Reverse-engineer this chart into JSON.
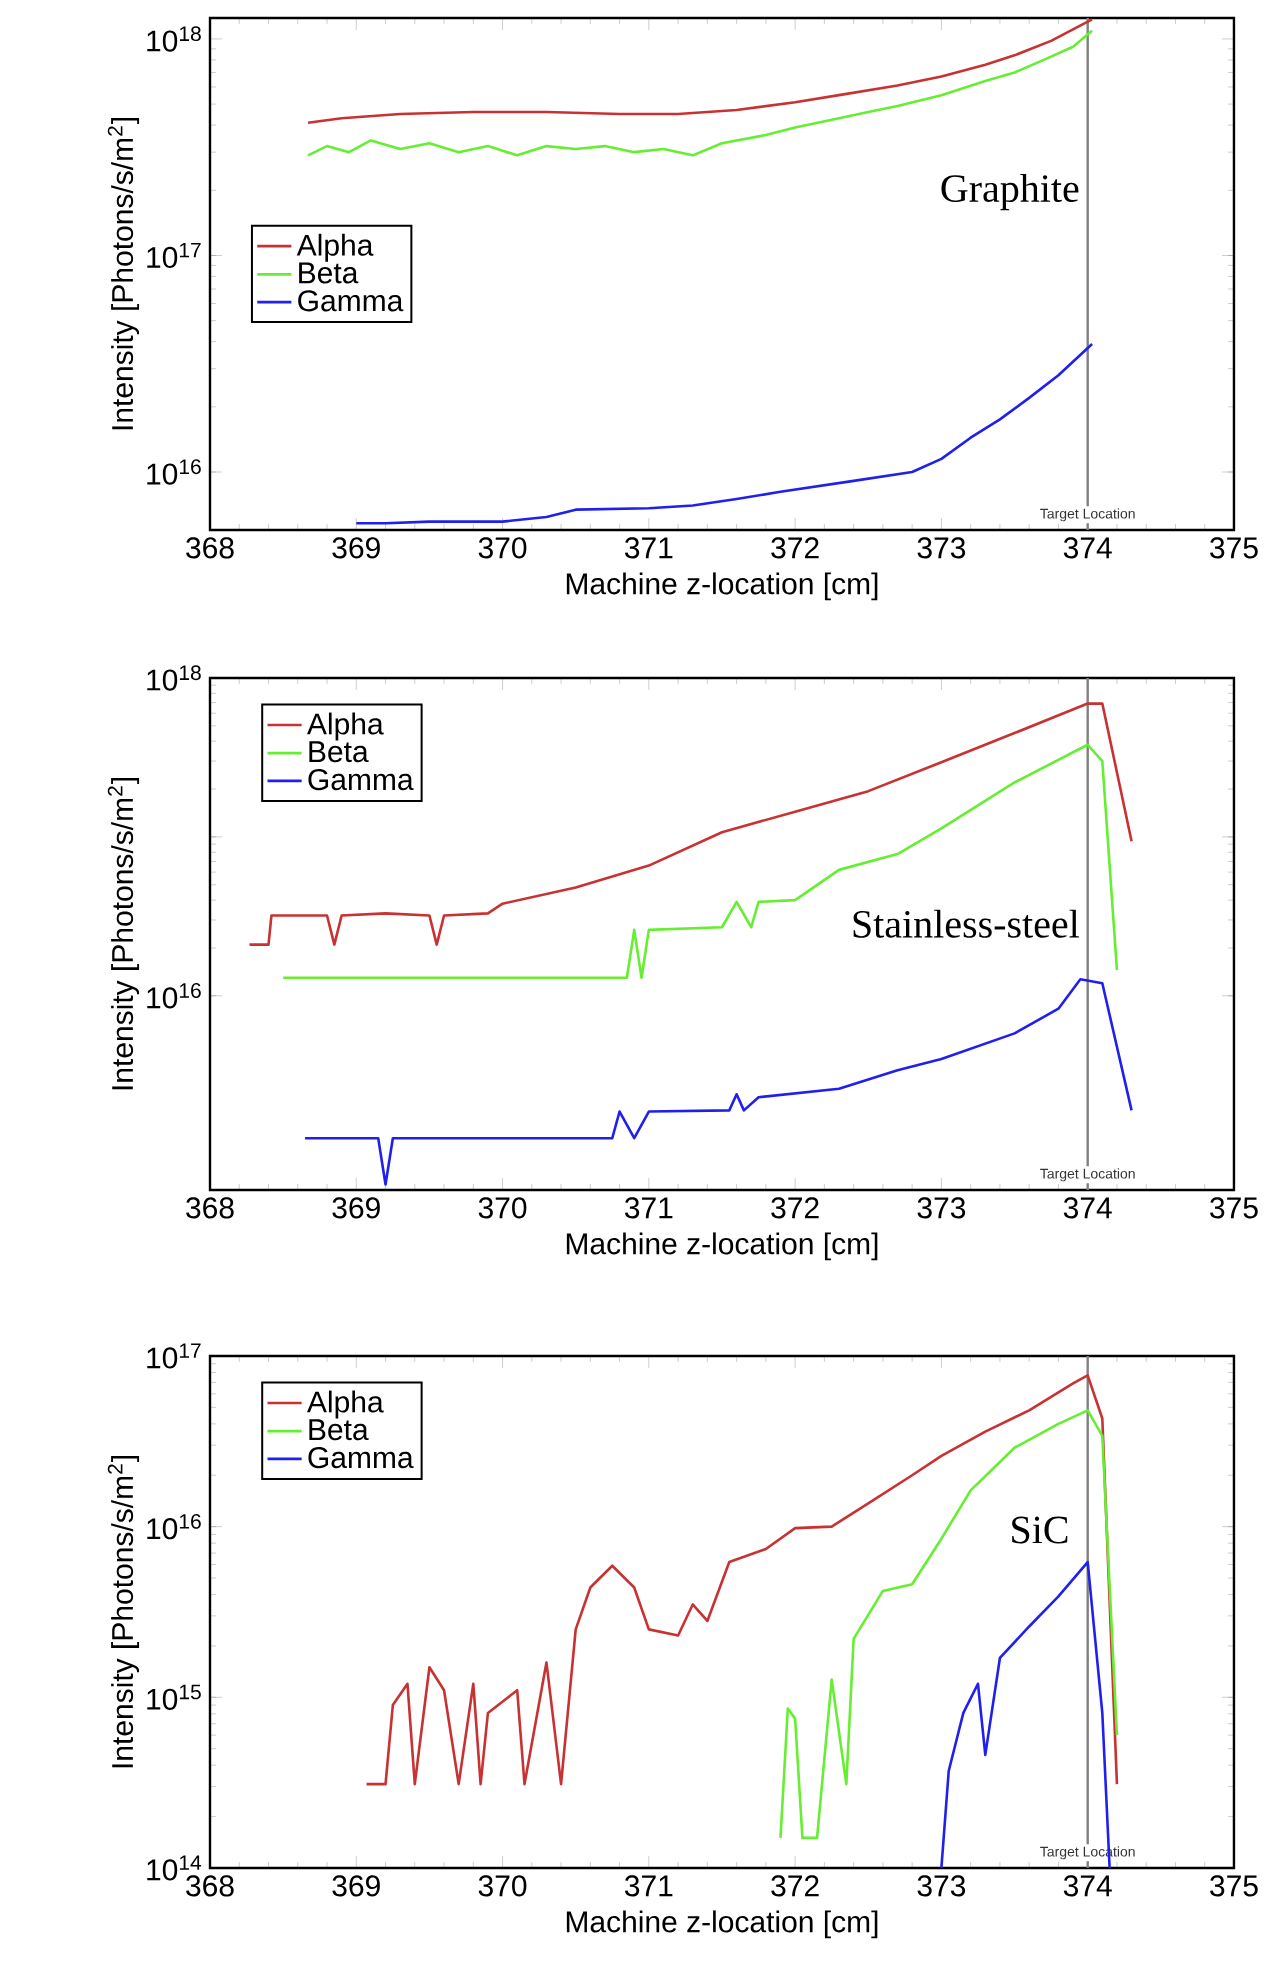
{
  "chart_data": [
    {
      "type": "line",
      "xlabel": "Machine z-location [cm]",
      "ylabel": "Intensity [Photons/s/m$^{2}$]",
      "log": "y",
      "legend": "left",
      "xlim": [
        368,
        375
      ],
      "xticks": [
        368,
        369,
        370,
        371,
        372,
        373,
        374,
        375
      ],
      "ylim": [
        5400000000000000.0,
        1.25e+18
      ],
      "yticks": [
        {
          "value": 1e+16,
          "label": "10$^{16}$"
        },
        {
          "value": 1e+17,
          "label": "10$^{17}$"
        },
        {
          "value": 1e+18,
          "label": "10$^{18}$"
        }
      ],
      "annotations": [
        "Graphite"
      ],
      "ref_lines": [
        {
          "axis": "x",
          "value": 374,
          "label": "Target Location",
          "color": "#808080"
        }
      ],
      "series": [
        {
          "name": "Alpha",
          "color": "#c83232",
          "x": [
            368.67,
            368.9,
            369.3,
            369.8,
            370.3,
            370.8,
            371.2,
            371.6,
            372.0,
            372.3,
            372.7,
            373.0,
            373.3,
            373.5,
            373.75,
            374.03
          ],
          "values": [
            4.1e+17,
            4.3e+17,
            4.5e+17,
            4.6e+17,
            4.6e+17,
            4.5e+17,
            4.5e+17,
            4.7e+17,
            5.1e+17,
            5.5e+17,
            6.1e+17,
            6.7e+17,
            7.6e+17,
            8.4e+17,
            9.8e+17,
            1.23e+18
          ]
        },
        {
          "name": "Beta",
          "color": "#66ee33",
          "x": [
            368.67,
            368.8,
            368.95,
            369.1,
            369.3,
            369.5,
            369.7,
            369.9,
            370.1,
            370.3,
            370.5,
            370.7,
            370.9,
            371.1,
            371.3,
            371.5,
            371.8,
            372.0,
            372.3,
            372.5,
            372.7,
            373.0,
            373.3,
            373.5,
            373.7,
            373.9,
            374.03
          ],
          "values": [
            2.9e+17,
            3.2e+17,
            3e+17,
            3.4e+17,
            3.1e+17,
            3.3e+17,
            3e+17,
            3.2e+17,
            2.9e+17,
            3.2e+17,
            3.1e+17,
            3.2e+17,
            3e+17,
            3.1e+17,
            2.9e+17,
            3.3e+17,
            3.6e+17,
            3.9e+17,
            4.3e+17,
            4.6e+17,
            4.9e+17,
            5.5e+17,
            6.4e+17,
            7e+17,
            8e+17,
            9.2e+17,
            1.09e+18
          ]
        },
        {
          "name": "Gamma",
          "color": "#2020ee",
          "x": [
            369.0,
            369.2,
            369.5,
            370.0,
            370.3,
            370.5,
            371.0,
            371.3,
            371.6,
            371.9,
            372.4,
            372.8,
            373.0,
            373.2,
            373.4,
            373.6,
            373.8,
            374.03
          ],
          "values": [
            5800000000000000.0,
            5800000000000000.0,
            5900000000000000.0,
            5900000000000000.0,
            6200000000000000.0,
            6700000000000000.0,
            6800000000000000.0,
            7000000000000000.0,
            7500000000000000.0,
            8100000000000000.0,
            9100000000000000.0,
            1e+16,
            1.15e+16,
            1.44e+16,
            1.75e+16,
            2.2e+16,
            2.8e+16,
            3.9e+16
          ]
        }
      ]
    },
    {
      "type": "line",
      "xlabel": "Machine z-location [cm]",
      "ylabel": "Intensity [Photons/s/m$^{2}$]",
      "log": "y",
      "legend": "top left",
      "xlim": [
        368,
        375
      ],
      "xticks": [
        368,
        369,
        370,
        371,
        372,
        373,
        374,
        375
      ],
      "ylim": [
        600000000000000.0,
        1e+18
      ],
      "yticks": [
        {
          "value": 1e+16,
          "label": "10$^{16}$"
        },
        {
          "value": 1e+17,
          "label": null
        },
        {
          "value": 1e+18,
          "label": "10$^{18}$"
        }
      ],
      "annotations": [
        "Stainless-steel"
      ],
      "ref_lines": [
        {
          "axis": "x",
          "value": 374,
          "label": "Target Location",
          "color": "#808080"
        }
      ],
      "series": [
        {
          "name": "Alpha",
          "color": "#c83232",
          "x": [
            368.27,
            368.4,
            368.42,
            368.8,
            368.85,
            368.9,
            369.2,
            369.5,
            369.55,
            369.6,
            369.9,
            370.0,
            370.5,
            371.0,
            371.5,
            372.0,
            372.5,
            373.0,
            373.5,
            374.0,
            374.1,
            374.3
          ],
          "values": [
            2.1e+16,
            2.1e+16,
            3.2e+16,
            3.2e+16,
            2.1e+16,
            3.2e+16,
            3.3e+16,
            3.2e+16,
            2.1e+16,
            3.2e+16,
            3.3e+16,
            3.8e+16,
            4.8e+16,
            6.6e+16,
            1.07e+17,
            1.44e+17,
            1.94e+17,
            2.95e+17,
            4.5e+17,
            6.9e+17,
            6.9e+17,
            9.4e+16
          ]
        },
        {
          "name": "Beta",
          "color": "#66ee33",
          "x": [
            368.5,
            369.0,
            369.5,
            370.0,
            370.5,
            370.85,
            370.9,
            370.95,
            371.0,
            371.5,
            371.6,
            371.7,
            371.75,
            372.0,
            372.3,
            372.7,
            373.0,
            373.5,
            374.0,
            374.1,
            374.2
          ],
          "values": [
            1.3e+16,
            1.3e+16,
            1.3e+16,
            1.3e+16,
            1.3e+16,
            1.3e+16,
            2.6e+16,
            1.3e+16,
            2.6e+16,
            2.7e+16,
            3.9e+16,
            2.7e+16,
            3.9e+16,
            4e+16,
            6.2e+16,
            7.8e+16,
            1.13e+17,
            2.2e+17,
            3.8e+17,
            3e+17,
            1.45e+16
          ]
        },
        {
          "name": "Gamma",
          "color": "#2020ee",
          "x": [
            368.65,
            369.15,
            369.2,
            369.25,
            370.75,
            370.8,
            370.9,
            371.0,
            371.55,
            371.6,
            371.65,
            371.75,
            372.3,
            372.7,
            373.0,
            373.5,
            373.8,
            373.95,
            374.1,
            374.3
          ],
          "values": [
            1270000000000000.0,
            1270000000000000.0,
            650000000000000.0,
            1270000000000000.0,
            1270000000000000.0,
            1870000000000000.0,
            1270000000000000.0,
            1870000000000000.0,
            1900000000000000.0,
            2400000000000000.0,
            1900000000000000.0,
            2300000000000000.0,
            2600000000000000.0,
            3400000000000000.0,
            4000000000000000.0,
            5800000000000000.0,
            8300000000000000.0,
            1.27e+16,
            1.2e+16,
            1900000000000000.0
          ]
        }
      ]
    },
    {
      "type": "line",
      "xlabel": "Machine z-location [cm]",
      "ylabel": "Intensity [Photons/s/m$^{2}$]",
      "log": "y",
      "legend": "top left",
      "xlim": [
        368,
        375
      ],
      "xticks": [
        368,
        369,
        370,
        371,
        372,
        373,
        374,
        375
      ],
      "ylim": [
        100000000000000.0,
        1e+17
      ],
      "yticks": [
        {
          "value": 100000000000000.0,
          "label": "10$^{14}$"
        },
        {
          "value": 1000000000000000.0,
          "label": "10$^{15}$"
        },
        {
          "value": 1e+16,
          "label": "10$^{16}$"
        },
        {
          "value": 1e+17,
          "label": "10$^{17}$"
        }
      ],
      "annotations": [
        "SiC"
      ],
      "ref_lines": [
        {
          "axis": "x",
          "value": 374,
          "label": "Target Location",
          "color": "#808080"
        }
      ],
      "series": [
        {
          "name": "Alpha",
          "color": "#c83232",
          "x": [
            369.07,
            369.2,
            369.25,
            369.35,
            369.4,
            369.5,
            369.6,
            369.7,
            369.8,
            369.85,
            369.9,
            370.1,
            370.15,
            370.3,
            370.4,
            370.5,
            370.6,
            370.75,
            370.9,
            371.0,
            371.2,
            371.3,
            371.4,
            371.55,
            371.8,
            372.0,
            372.25,
            372.5,
            372.8,
            373.0,
            373.3,
            373.6,
            373.9,
            374.0,
            374.1,
            374.2
          ],
          "values": [
            310000000000000.0,
            310000000000000.0,
            900000000000000.0,
            1200000000000000.0,
            310000000000000.0,
            1500000000000000.0,
            1100000000000000.0,
            310000000000000.0,
            1200000000000000.0,
            310000000000000.0,
            810000000000000.0,
            1100000000000000.0,
            310000000000000.0,
            1600000000000000.0,
            310000000000000.0,
            2500000000000000.0,
            4400000000000000.0,
            5900000000000000.0,
            4400000000000000.0,
            2500000000000000.0,
            2300000000000000.0,
            3500000000000000.0,
            2800000000000000.0,
            6200000000000000.0,
            7400000000000000.0,
            9800000000000000.0,
            1e+16,
            1.37e+16,
            2e+16,
            2.6e+16,
            3.6e+16,
            4.8e+16,
            6.9e+16,
            7.7e+16,
            4.3e+16,
            310000000000000.0
          ]
        },
        {
          "name": "Beta",
          "color": "#66ee33",
          "x": [
            371.9,
            371.95,
            372.0,
            372.05,
            372.15,
            372.25,
            372.35,
            372.4,
            372.6,
            372.8,
            373.0,
            373.2,
            373.5,
            373.8,
            374.0,
            374.1,
            374.2
          ],
          "values": [
            150000000000000.0,
            860000000000000.0,
            750000000000000.0,
            150000000000000.0,
            150000000000000.0,
            1270000000000000.0,
            310000000000000.0,
            2200000000000000.0,
            4200000000000000.0,
            4600000000000000.0,
            8500000000000000.0,
            1.63e+16,
            2.9e+16,
            4e+16,
            4.8e+16,
            3.4e+16,
            600000000000000.0
          ]
        },
        {
          "name": "Gamma",
          "color": "#2020ee",
          "x": [
            373.0,
            373.05,
            373.15,
            373.25,
            373.3,
            373.4,
            373.6,
            373.8,
            374.0,
            374.1,
            374.15
          ],
          "values": [
            100000000000000.0,
            370000000000000.0,
            810000000000000.0,
            1200000000000000.0,
            460000000000000.0,
            1700000000000000.0,
            2600000000000000.0,
            3900000000000000.0,
            6200000000000000.0,
            810000000000000.0,
            100000000000000.0
          ]
        }
      ]
    }
  ]
}
